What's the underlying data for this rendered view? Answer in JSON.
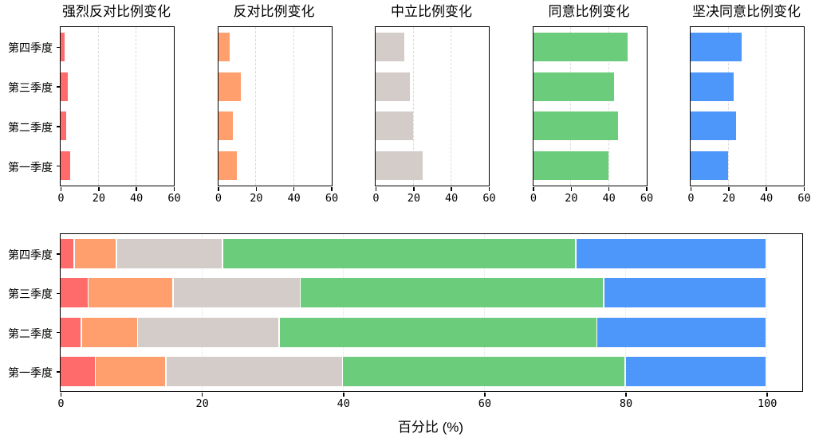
{
  "chart_data": [
    {
      "type": "bar",
      "orientation": "horizontal",
      "title": "强烈反对比例变化",
      "categories": [
        "第四季度",
        "第三季度",
        "第二季度",
        "第一季度"
      ],
      "values": [
        2,
        4,
        3,
        5
      ],
      "color": "#FF6B6B",
      "xlim": [
        0,
        60
      ],
      "xticks": [
        0,
        20,
        40,
        60
      ],
      "grid": "vertical-dashed",
      "show_category_labels": true
    },
    {
      "type": "bar",
      "orientation": "horizontal",
      "title": "反对比例变化",
      "categories": [
        "第四季度",
        "第三季度",
        "第二季度",
        "第一季度"
      ],
      "values": [
        6,
        12,
        8,
        10
      ],
      "color": "#FF9F6E",
      "xlim": [
        0,
        60
      ],
      "xticks": [
        0,
        20,
        40,
        60
      ],
      "grid": "vertical-dashed",
      "show_category_labels": false
    },
    {
      "type": "bar",
      "orientation": "horizontal",
      "title": "中立比例变化",
      "categories": [
        "第四季度",
        "第三季度",
        "第二季度",
        "第一季度"
      ],
      "values": [
        15,
        18,
        20,
        25
      ],
      "color": "#D3CCC9",
      "xlim": [
        0,
        60
      ],
      "xticks": [
        0,
        20,
        40,
        60
      ],
      "grid": "vertical-dashed",
      "show_category_labels": false
    },
    {
      "type": "bar",
      "orientation": "horizontal",
      "title": "同意比例变化",
      "categories": [
        "第四季度",
        "第三季度",
        "第二季度",
        "第一季度"
      ],
      "values": [
        50,
        43,
        45,
        40
      ],
      "color": "#6BCC7B",
      "xlim": [
        0,
        60
      ],
      "xticks": [
        0,
        20,
        40,
        60
      ],
      "grid": "vertical-dashed",
      "show_category_labels": false
    },
    {
      "type": "bar",
      "orientation": "horizontal",
      "title": "坚决同意比例变化",
      "categories": [
        "第四季度",
        "第三季度",
        "第二季度",
        "第一季度"
      ],
      "values": [
        27,
        23,
        24,
        20
      ],
      "color": "#4D96FA",
      "xlim": [
        0,
        60
      ],
      "xticks": [
        0,
        20,
        40,
        60
      ],
      "grid": "vertical-dashed",
      "show_category_labels": false
    },
    {
      "type": "stacked-bar",
      "orientation": "horizontal",
      "categories": [
        "第四季度",
        "第三季度",
        "第二季度",
        "第一季度"
      ],
      "series": [
        {
          "name": "强烈反对",
          "values": [
            2,
            4,
            3,
            5
          ],
          "color": "#FF6B6B"
        },
        {
          "name": "反对",
          "values": [
            6,
            12,
            8,
            10
          ],
          "color": "#FF9F6E"
        },
        {
          "name": "中立",
          "values": [
            15,
            18,
            20,
            25
          ],
          "color": "#D3CCC9"
        },
        {
          "name": "同意",
          "values": [
            50,
            43,
            45,
            40
          ],
          "color": "#6BCC7B"
        },
        {
          "name": "坚决同意",
          "values": [
            27,
            23,
            24,
            20
          ],
          "color": "#4D96FA"
        }
      ],
      "xlabel": "百分比 (%)",
      "xlim": [
        0,
        105
      ],
      "xticks": [
        0,
        20,
        40,
        60,
        80,
        100
      ],
      "grid": "vertical-dotted",
      "show_category_labels": true
    }
  ]
}
